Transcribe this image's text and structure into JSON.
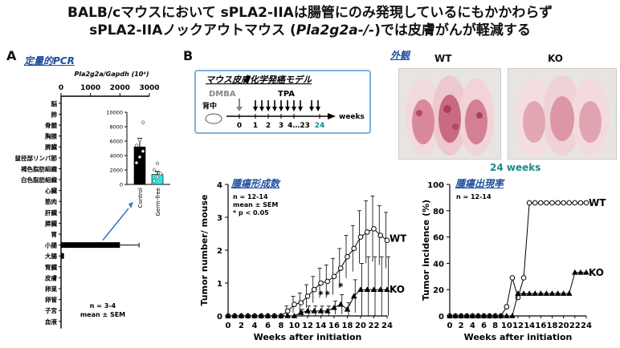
{
  "header": {
    "title_line1": "BALB/cマウスにおいて sPLA2-IIAは腸管にのみ発現しているにもかかわらず",
    "title_line2_prefix": "sPLA2-IIAノックアウトマウス (",
    "title_line2_gene": "Pla2g2a-/-",
    "title_line2_suffix": ")では皮膚がんが軽減する"
  },
  "panel_a": {
    "letter": "A",
    "subtitle": "定量的PCR",
    "axis_title": "Pla2g2a/Gapdh (10⁴)",
    "note_n": "n = 3-4",
    "note_stat": "mean ± SEM"
  },
  "panel_b": {
    "letter": "B",
    "model_title": "マウス皮膚化学発癌モデル",
    "dmba_label": "DMBA",
    "tpa_label": "TPA",
    "back_label": "背中",
    "weeks_label": "weeks",
    "timeline_ticks": [
      "0",
      "1",
      "2",
      "3",
      "4…23",
      "24"
    ],
    "photo_title": "外観",
    "photo_wt": "WT",
    "photo_ko": "KO",
    "photo_caption": "24 weeks",
    "tumor_number_title": "腫瘍形成数",
    "tumor_incidence_title": "腫瘍出現率",
    "number_note_n": "n = 12-14",
    "number_note_stat": "mean ± SEM",
    "number_note_p": "* p < 0.05",
    "incidence_note_n": "n = 12-14"
  },
  "colors": {
    "accent_blue": "#1f4e9c",
    "teal": "#1a8a8a",
    "cyan_bar": "#33e0e0",
    "box_border": "#7fb0dd"
  },
  "chart_data": [
    {
      "type": "bar",
      "orientation": "horizontal",
      "categories": [
        "脳",
        "肺",
        "骨髄",
        "胸腺",
        "脾臓",
        "鼠径部リンパ節",
        "褐色脂肪組織",
        "白色脂肪組織",
        "心臓",
        "筋肉",
        "肝臓",
        "膵臓",
        "胃",
        "小腸",
        "大腸",
        "腎臓",
        "皮膚",
        "卵巣",
        "卵管",
        "子宮",
        "血液"
      ],
      "values": [
        0,
        0,
        0,
        0,
        0,
        0,
        0,
        0,
        0,
        0,
        0,
        0,
        0,
        2000,
        100,
        0,
        0,
        0,
        0,
        0,
        0
      ],
      "errors": [
        0,
        0,
        0,
        0,
        0,
        0,
        0,
        0,
        0,
        0,
        0,
        0,
        0,
        650,
        0,
        0,
        0,
        0,
        0,
        0,
        0
      ],
      "xlabel": "Pla2g2a/Gapdh (10⁴)",
      "xlim": [
        0,
        3000
      ],
      "xticks": [
        "0",
        "1000",
        "2000",
        "3000"
      ]
    },
    {
      "type": "bar",
      "categories": [
        "Control",
        "Germ-free"
      ],
      "values": [
        5200,
        1400
      ],
      "errors": [
        1200,
        400
      ],
      "ylim": [
        0,
        10000
      ],
      "yticks": [
        "0",
        "2000",
        "4000",
        "6000",
        "8000",
        "10000"
      ],
      "colors": [
        "#000000",
        "#33e0e0"
      ],
      "points": [
        [
          3000,
          3800,
          4600,
          5400,
          6200,
          8600
        ],
        [
          500,
          1000,
          1500,
          2000,
          2900
        ]
      ]
    },
    {
      "type": "line",
      "x": [
        0,
        1,
        2,
        3,
        4,
        5,
        6,
        7,
        8,
        9,
        10,
        11,
        12,
        13,
        14,
        15,
        16,
        17,
        18,
        19,
        20,
        21,
        22,
        23,
        24
      ],
      "series": [
        {
          "name": "WT",
          "values": [
            0,
            0,
            0,
            0,
            0,
            0,
            0,
            0,
            0,
            0.15,
            0.35,
            0.4,
            0.6,
            0.8,
            1.0,
            1.05,
            1.2,
            1.45,
            1.8,
            2.05,
            2.4,
            2.55,
            2.65,
            2.45,
            2.3
          ],
          "errors": [
            0,
            0,
            0,
            0,
            0,
            0,
            0,
            0,
            0,
            0.15,
            0.25,
            0.3,
            0.35,
            0.4,
            0.45,
            0.5,
            0.55,
            0.6,
            0.65,
            0.7,
            0.8,
            0.95,
            1.0,
            0.9,
            0.85
          ]
        },
        {
          "name": "KO",
          "values": [
            0,
            0,
            0,
            0,
            0,
            0,
            0,
            0,
            0,
            0,
            0,
            0.1,
            0.15,
            0.15,
            0.15,
            0.15,
            0.25,
            0.35,
            0.2,
            0.6,
            0.8,
            0.8,
            0.8,
            0.8,
            0.8
          ],
          "errors": [
            0,
            0,
            0,
            0,
            0,
            0,
            0,
            0,
            0,
            0,
            0,
            0.1,
            0.15,
            0.15,
            0.15,
            0.15,
            0.2,
            0.3,
            0.2,
            0.5,
            0.8,
            1.0,
            1.0,
            1.0,
            1.0
          ]
        }
      ],
      "significance": [
        {
          "x": 14,
          "label": "*"
        },
        {
          "x": 15,
          "label": "*"
        },
        {
          "x": 17,
          "label": "*"
        }
      ],
      "xlabel": "Weeks after initiation",
      "ylabel": "Tumor number/ mouse",
      "xlim": [
        0,
        24
      ],
      "ylim": [
        0,
        4
      ],
      "xticks": [
        "0",
        "2",
        "4",
        "6",
        "8",
        "10",
        "12",
        "14",
        "16",
        "18",
        "20",
        "22",
        "24"
      ],
      "yticks": [
        "0",
        "1",
        "2",
        "3",
        "4"
      ]
    },
    {
      "type": "line",
      "x": [
        0,
        1,
        2,
        3,
        4,
        5,
        6,
        7,
        8,
        9,
        10,
        11,
        12,
        13,
        14,
        15,
        16,
        17,
        18,
        19,
        20,
        21,
        22,
        23,
        24
      ],
      "series": [
        {
          "name": "WT",
          "values": [
            0,
            0,
            0,
            0,
            0,
            0,
            0,
            0,
            0,
            0,
            7,
            29,
            14,
            29,
            86,
            86,
            86,
            86,
            86,
            86,
            86,
            86,
            86,
            86,
            86
          ]
        },
        {
          "name": "KO",
          "values": [
            0,
            0,
            0,
            0,
            0,
            0,
            0,
            0,
            0,
            0,
            0,
            0,
            17,
            17,
            17,
            17,
            17,
            17,
            17,
            17,
            17,
            17,
            33,
            33,
            33
          ]
        }
      ],
      "xlabel": "Weeks after initiation",
      "ylabel": "Tumor incidence (%)",
      "xlim": [
        0,
        24
      ],
      "ylim": [
        0,
        100
      ],
      "xticks": [
        "0",
        "2",
        "4",
        "6",
        "8",
        "10",
        "12",
        "14",
        "16",
        "18",
        "20",
        "22",
        "24"
      ],
      "yticks": [
        "0",
        "20",
        "40",
        "60",
        "80",
        "100"
      ]
    }
  ]
}
